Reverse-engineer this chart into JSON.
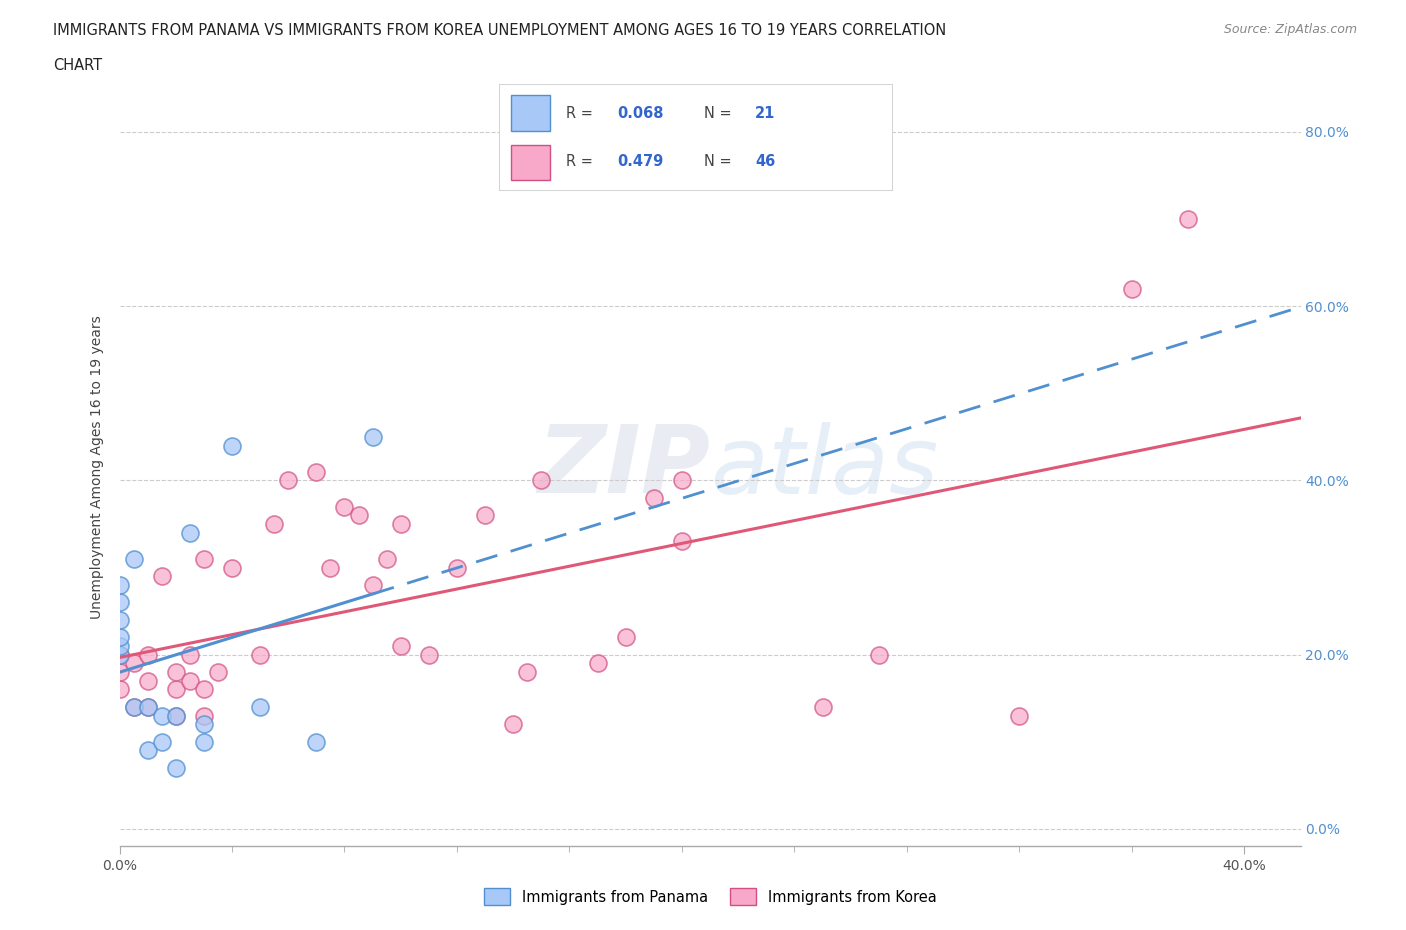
{
  "title_line1": "IMMIGRANTS FROM PANAMA VS IMMIGRANTS FROM KOREA UNEMPLOYMENT AMONG AGES 16 TO 19 YEARS CORRELATION",
  "title_line2": "CHART",
  "source": "Source: ZipAtlas.com",
  "ylabel": "Unemployment Among Ages 16 to 19 years",
  "xlim": [
    0.0,
    0.42
  ],
  "ylim": [
    -0.02,
    0.85
  ],
  "yticks": [
    0.0,
    0.2,
    0.4,
    0.6,
    0.8
  ],
  "yticklabels": [
    "0.0%",
    "20.0%",
    "40.0%",
    "60.0%",
    "80.0%"
  ],
  "panama_color": "#a8c8f8",
  "korea_color": "#f8a8c8",
  "panama_edge_color": "#5090d0",
  "korea_edge_color": "#d05080",
  "trendline_blue_color": "#5090d0",
  "trendline_pink_color": "#e05878",
  "legend_r_color": "#3366cc",
  "legend_n_color": "#3366cc",
  "watermark_text": "ZIPatlas",
  "panama_x": [
    0.0,
    0.0,
    0.0,
    0.0,
    0.0,
    0.0,
    0.005,
    0.005,
    0.01,
    0.01,
    0.015,
    0.015,
    0.02,
    0.02,
    0.025,
    0.03,
    0.03,
    0.04,
    0.05,
    0.07,
    0.09
  ],
  "panama_y": [
    0.2,
    0.21,
    0.22,
    0.24,
    0.26,
    0.28,
    0.14,
    0.31,
    0.09,
    0.14,
    0.1,
    0.13,
    0.07,
    0.13,
    0.34,
    0.1,
    0.12,
    0.44,
    0.14,
    0.1,
    0.45
  ],
  "korea_x": [
    0.0,
    0.0,
    0.0,
    0.005,
    0.005,
    0.01,
    0.01,
    0.01,
    0.015,
    0.02,
    0.02,
    0.02,
    0.025,
    0.025,
    0.03,
    0.03,
    0.03,
    0.035,
    0.04,
    0.05,
    0.055,
    0.06,
    0.07,
    0.075,
    0.08,
    0.085,
    0.09,
    0.095,
    0.1,
    0.1,
    0.11,
    0.12,
    0.13,
    0.14,
    0.145,
    0.15,
    0.17,
    0.18,
    0.19,
    0.2,
    0.2,
    0.25,
    0.27,
    0.32,
    0.36,
    0.38
  ],
  "korea_y": [
    0.16,
    0.18,
    0.2,
    0.14,
    0.19,
    0.14,
    0.17,
    0.2,
    0.29,
    0.13,
    0.16,
    0.18,
    0.17,
    0.2,
    0.13,
    0.16,
    0.31,
    0.18,
    0.3,
    0.2,
    0.35,
    0.4,
    0.41,
    0.3,
    0.37,
    0.36,
    0.28,
    0.31,
    0.21,
    0.35,
    0.2,
    0.3,
    0.36,
    0.12,
    0.18,
    0.4,
    0.19,
    0.22,
    0.38,
    0.33,
    0.4,
    0.14,
    0.2,
    0.13,
    0.62,
    0.7
  ]
}
